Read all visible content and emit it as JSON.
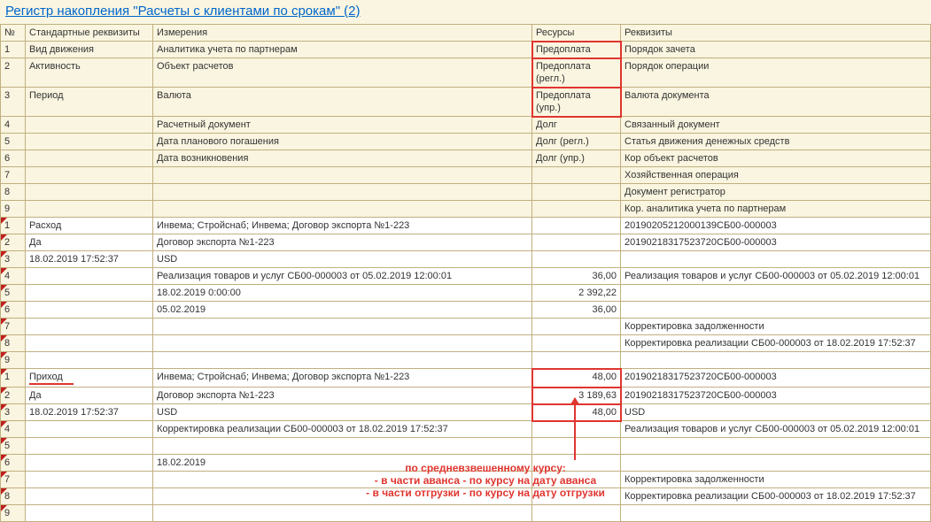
{
  "title": "Регистр накопления \"Расчеты с клиентами по срокам\" (2)",
  "colors": {
    "header_bg": "#faf5e0",
    "border": "#c0b080",
    "link": "#0066cc",
    "annotation": "#e0352f"
  },
  "columns": {
    "num": "№",
    "c1": "Стандартные реквизиты",
    "c2": "Измерения",
    "c3": "Ресурсы",
    "c4": "Реквизиты"
  },
  "header_rows": [
    {
      "n": "1",
      "c1": "Вид движения",
      "c2": "Аналитика учета по партнерам",
      "c3": "Предоплата",
      "c4": "Порядок зачета",
      "c3box": true
    },
    {
      "n": "2",
      "c1": "Активность",
      "c2": "Объект расчетов",
      "c3": "Предоплата (регл.)",
      "c4": "Порядок операции",
      "c3box": true
    },
    {
      "n": "3",
      "c1": "Период",
      "c2": "Валюта",
      "c3": "Предоплата (упр.)",
      "c4": "Валюта документа",
      "c3box": true
    },
    {
      "n": "4",
      "c1": "",
      "c2": "Расчетный документ",
      "c3": "Долг",
      "c4": "Связанный документ"
    },
    {
      "n": "5",
      "c1": "",
      "c2": "Дата планового погашения",
      "c3": "Долг (регл.)",
      "c4": "Статья движения денежных средств"
    },
    {
      "n": "6",
      "c1": "",
      "c2": "Дата возникновения",
      "c3": "Долг (упр.)",
      "c4": "Кор объект расчетов"
    },
    {
      "n": "7",
      "c1": "",
      "c2": "",
      "c3": "",
      "c4": "Хозяйственная операция"
    },
    {
      "n": "8",
      "c1": "",
      "c2": "",
      "c3": "",
      "c4": "Документ регистратор"
    },
    {
      "n": "9",
      "c1": "",
      "c2": "",
      "c3": "",
      "c4": "Кор. аналитика учета по партнерам"
    }
  ],
  "block1": [
    {
      "n": "1",
      "c1": "Расход",
      "c2": "Инвема; Стройснаб; Инвема; Договор экспорта №1-223",
      "c3": "",
      "c4": "20190205212000139СБ00-000003",
      "tri": true
    },
    {
      "n": "2",
      "c1": "Да",
      "c2": "Договор экспорта №1-223",
      "c3": "",
      "c4": "20190218317523720СБ00-000003",
      "tri": true
    },
    {
      "n": "3",
      "c1": "18.02.2019 17:52:37",
      "c2": "USD",
      "c3": "",
      "c4": "",
      "tri": true
    },
    {
      "n": "4",
      "c1": "",
      "c2": "Реализация товаров и услуг СБ00-000003 от 05.02.2019 12:00:01",
      "c3": "36,00",
      "c4": "Реализация товаров и услуг СБ00-000003 от 05.02.2019 12:00:01",
      "tri": true,
      "rt": true
    },
    {
      "n": "5",
      "c1": "",
      "c2": "18.02.2019 0:00:00",
      "c3": "2 392,22",
      "c4": "",
      "tri": true,
      "rt": true
    },
    {
      "n": "6",
      "c1": "",
      "c2": "05.02.2019",
      "c3": "36,00",
      "c4": "",
      "tri": true,
      "rt": true
    },
    {
      "n": "7",
      "c1": "",
      "c2": "",
      "c3": "",
      "c4": "Корректировка задолженности",
      "tri": true
    },
    {
      "n": "8",
      "c1": "",
      "c2": "",
      "c3": "",
      "c4": "Корректировка реализации СБ00-000003 от 18.02.2019 17:52:37",
      "tri": true
    },
    {
      "n": "9",
      "c1": "",
      "c2": "",
      "c3": "",
      "c4": "",
      "tri": true
    }
  ],
  "block2": [
    {
      "n": "1",
      "c1": "Приход",
      "c2": "Инвема; Стройснаб; Инвема; Договор экспорта №1-223",
      "c3": "48,00",
      "c4": "20190218317523720СБ00-000003",
      "tri": true,
      "rt": true,
      "c3box": true,
      "c1uline": true
    },
    {
      "n": "2",
      "c1": "Да",
      "c2": "Договор экспорта №1-223",
      "c3": "3 189,63",
      "c4": "20190218317523720СБ00-000003",
      "tri": true,
      "rt": true,
      "c3box": true
    },
    {
      "n": "3",
      "c1": "18.02.2019 17:52:37",
      "c2": "USD",
      "c3": "48,00",
      "c4": "USD",
      "tri": true,
      "rt": true,
      "c3box": true
    },
    {
      "n": "4",
      "c1": "",
      "c2": "Корректировка реализации СБ00-000003 от 18.02.2019 17:52:37",
      "c3": "",
      "c4": "Реализация товаров и услуг СБ00-000003 от 05.02.2019 12:00:01",
      "tri": true
    },
    {
      "n": "5",
      "c1": "",
      "c2": "",
      "c3": "",
      "c4": "",
      "tri": true
    },
    {
      "n": "6",
      "c1": "",
      "c2": "18.02.2019",
      "c3": "",
      "c4": "",
      "tri": true
    },
    {
      "n": "7",
      "c1": "",
      "c2": "",
      "c3": "",
      "c4": "Корректировка задолженности",
      "tri": true
    },
    {
      "n": "8",
      "c1": "",
      "c2": "",
      "c3": "",
      "c4": "Корректировка реализации СБ00-000003 от 18.02.2019 17:52:37",
      "tri": true
    },
    {
      "n": "9",
      "c1": "",
      "c2": "",
      "c3": "",
      "c4": "",
      "tri": true
    }
  ],
  "annotation": {
    "line1": "по средневзвешенному курсу:",
    "line2": "- в части аванса - по курсу на дату аванса",
    "line3": "- в части отгрузки - по курсу на дату отгрузки"
  }
}
